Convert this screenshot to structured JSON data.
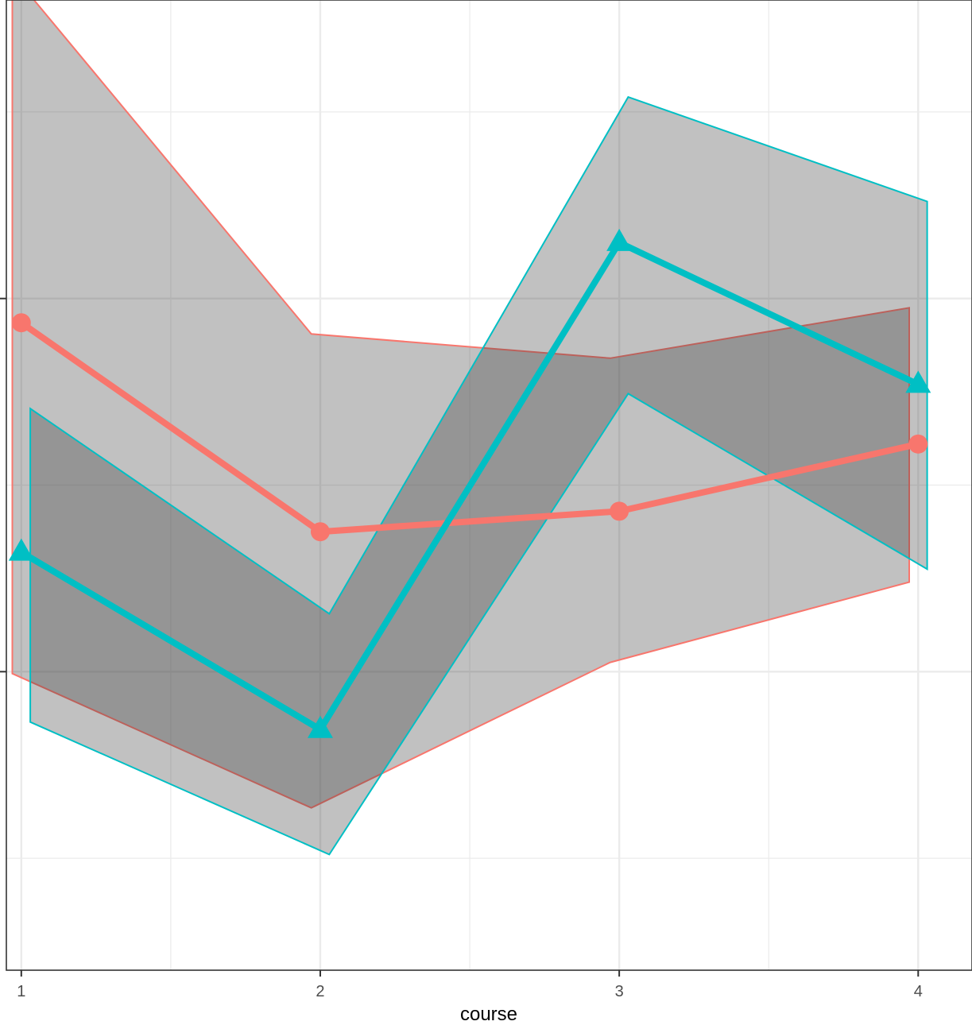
{
  "chart_data": {
    "type": "line",
    "title": "",
    "xlabel": "course",
    "ylabel": "",
    "x": [
      1,
      2,
      3,
      4
    ],
    "x_tick_labels": [
      "1",
      "2",
      "3",
      "4"
    ],
    "xlim": [
      0.95,
      4.18
    ],
    "y_tick_labels": [
      "",
      ""
    ],
    "ylim": [
      -2.6,
      2.6
    ],
    "y_major_ticks": [
      1.0,
      -1.0
    ],
    "y_minor_grid": [
      2.0,
      0.0,
      -2.0
    ],
    "grid": true,
    "legend": "none",
    "series": [
      {
        "color": "#F8766D",
        "marker": "circle",
        "x": [
          1.0,
          2.0,
          3.0,
          4.0
        ],
        "values": [
          0.87,
          -0.25,
          -0.14,
          0.22
        ],
        "ribbon_x": [
          0.97,
          1.97,
          2.97,
          3.97
        ],
        "ribbon_upper": [
          2.74,
          0.81,
          0.68,
          0.95
        ],
        "ribbon_lower": [
          -1.01,
          -1.73,
          -0.95,
          -0.52
        ]
      },
      {
        "color": "#00BFC4",
        "marker": "triangle",
        "x": [
          1.0,
          2.0,
          3.0,
          4.0
        ],
        "values": [
          -0.36,
          -1.31,
          1.3,
          0.54
        ],
        "ribbon_x": [
          1.03,
          2.03,
          3.03,
          4.03
        ],
        "ribbon_upper": [
          0.41,
          -0.69,
          2.08,
          1.52
        ],
        "ribbon_lower": [
          -1.27,
          -1.98,
          0.49,
          -0.45
        ]
      }
    ]
  }
}
